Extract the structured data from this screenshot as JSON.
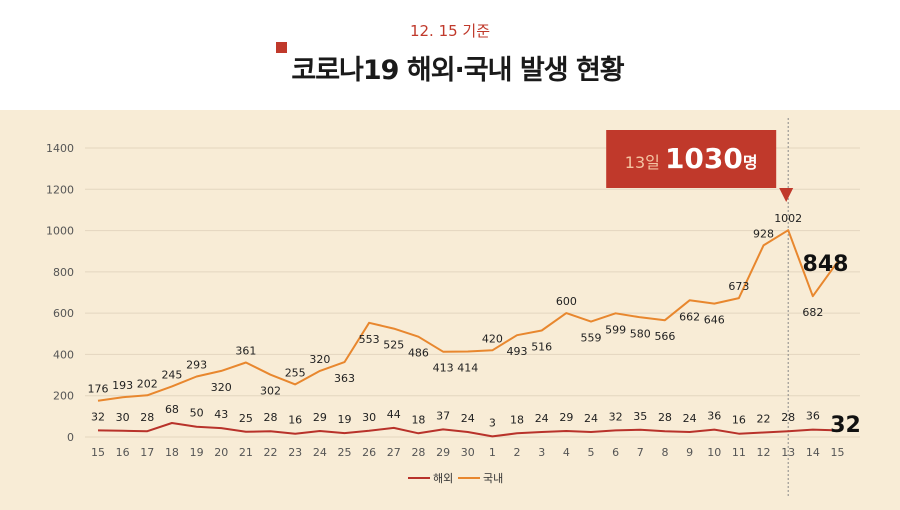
{
  "header": {
    "subtitle": "12. 15 기준",
    "title": "코로나19 해외·국내 발생 현황"
  },
  "callout": {
    "prefix": "13일",
    "value": "1030",
    "suffix": "명"
  },
  "colors": {
    "domestic": "#e8872e",
    "overseas": "#b8322a",
    "callout_bg": "#c0392b",
    "title_accent": "#c0392b",
    "grid": "#e3d6bf"
  },
  "chart_data": {
    "type": "line",
    "categories": [
      "15",
      "16",
      "17",
      "18",
      "19",
      "20",
      "21",
      "22",
      "23",
      "24",
      "25",
      "26",
      "27",
      "28",
      "29",
      "30",
      "1",
      "2",
      "3",
      "4",
      "5",
      "6",
      "7",
      "8",
      "9",
      "10",
      "11",
      "12",
      "13",
      "14",
      "15"
    ],
    "ylim": [
      0,
      1400
    ],
    "yticks": [
      0,
      200,
      400,
      600,
      800,
      1000,
      1200,
      1400
    ],
    "grid": true,
    "legend": "bottom-center",
    "series": [
      {
        "name": "해외",
        "values": [
          32,
          30,
          28,
          68,
          50,
          43,
          25,
          28,
          16,
          29,
          19,
          30,
          44,
          18,
          37,
          24,
          3,
          18,
          24,
          29,
          24,
          32,
          35,
          28,
          24,
          36,
          16,
          22,
          28,
          36,
          32
        ]
      },
      {
        "name": "국내",
        "values": [
          176,
          193,
          202,
          245,
          293,
          320,
          361,
          302,
          255,
          320,
          363,
          553,
          525,
          486,
          413,
          414,
          420,
          493,
          516,
          600,
          559,
          599,
          580,
          566,
          662,
          646,
          673,
          928,
          1002,
          682,
          848
        ]
      }
    ]
  }
}
